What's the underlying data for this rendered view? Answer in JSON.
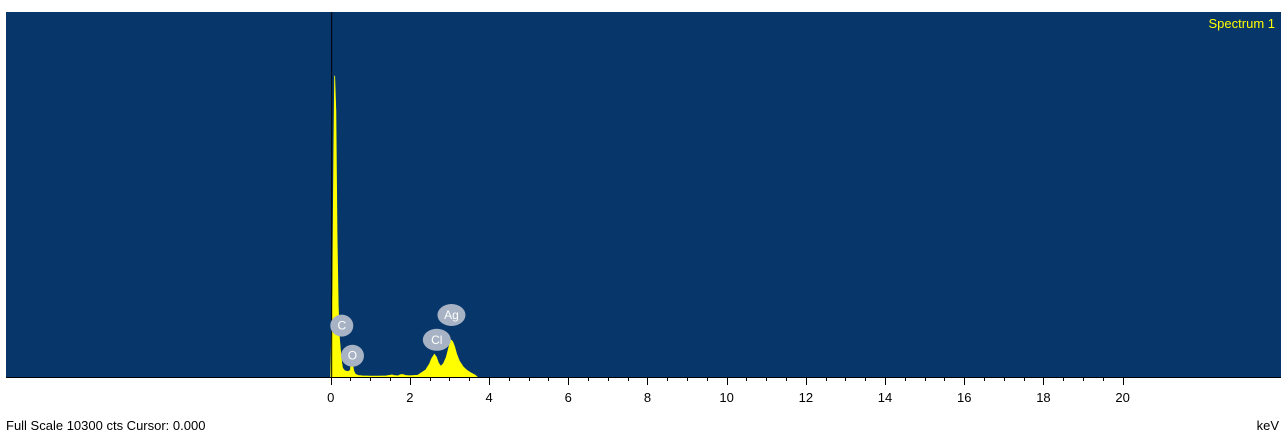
{
  "status_line": "Full Scale 10300 cts Cursor: 0.000",
  "x_unit": "keV",
  "colors": {
    "plot_background": "#06366A",
    "spectrum_fill": "#FFFF00",
    "peak_marker": "#A7B3C4",
    "cursor_line": "#000000"
  },
  "chart_data": {
    "type": "area",
    "x_unit": "keV",
    "xlim": [
      -8.2,
      24.0
    ],
    "ylim": [
      0,
      10300
    ],
    "full_scale_counts": 10300,
    "cursor_keV": 0.0,
    "x_ticks": [
      0,
      2,
      4,
      6,
      8,
      10,
      12,
      14,
      16,
      18,
      20
    ],
    "x_tick_labels": [
      "0",
      "2",
      "4",
      "6",
      "8",
      "10",
      "12",
      "14",
      "16",
      "18",
      "20"
    ],
    "series": [
      {
        "name": "Spectrum 1",
        "x": [
          0.0,
          0.05,
          0.08,
          0.1,
          0.13,
          0.16,
          0.19,
          0.22,
          0.25,
          0.28,
          0.3,
          0.35,
          0.4,
          0.45,
          0.5,
          0.52,
          0.55,
          0.58,
          0.62,
          0.7,
          0.8,
          1.0,
          1.2,
          1.4,
          1.5,
          1.55,
          1.6,
          1.7,
          1.75,
          1.8,
          1.85,
          1.9,
          2.0,
          2.2,
          2.4,
          2.5,
          2.55,
          2.62,
          2.67,
          2.72,
          2.78,
          2.85,
          2.92,
          2.98,
          3.03,
          3.08,
          3.13,
          3.18,
          3.25,
          3.35,
          3.45,
          3.55,
          3.65,
          3.7
        ],
        "y": [
          0,
          2500,
          6500,
          8500,
          7500,
          4000,
          2000,
          1100,
          700,
          380,
          250,
          180,
          160,
          150,
          200,
          520,
          380,
          180,
          80,
          40,
          30,
          25,
          25,
          30,
          50,
          60,
          40,
          30,
          60,
          70,
          60,
          40,
          35,
          50,
          200,
          380,
          520,
          640,
          560,
          400,
          300,
          380,
          560,
          820,
          1050,
          1000,
          850,
          650,
          450,
          280,
          180,
          110,
          50,
          0
        ]
      }
    ],
    "peak_labels": [
      {
        "label": "C",
        "x": 0.28,
        "counts": 1450
      },
      {
        "label": "O",
        "x": 0.55,
        "counts": 600
      },
      {
        "label": "Cl",
        "x": 2.68,
        "counts": 1050
      },
      {
        "label": "Ag",
        "x": 3.05,
        "counts": 1750
      }
    ]
  }
}
